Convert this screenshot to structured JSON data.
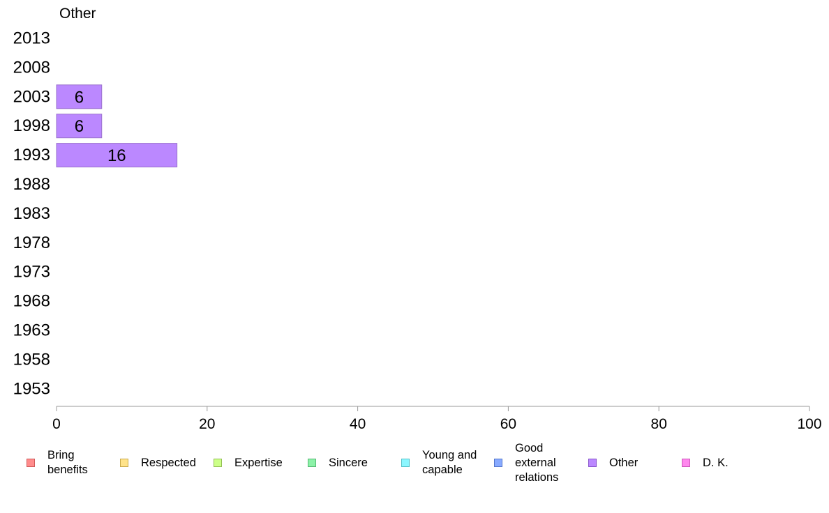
{
  "chart_data": {
    "type": "bar",
    "orientation": "horizontal",
    "title": "Other",
    "categories": [
      "2013",
      "2008",
      "2003",
      "1998",
      "1993",
      "1988",
      "1983",
      "1978",
      "1973",
      "1968",
      "1963",
      "1958",
      "1953"
    ],
    "series": [
      {
        "name": "Other",
        "color": "#bb88ff",
        "values": [
          null,
          null,
          6,
          6,
          16,
          null,
          null,
          null,
          null,
          null,
          null,
          null,
          null
        ]
      }
    ],
    "xlim": [
      0,
      100
    ],
    "xticks": [
      0,
      20,
      40,
      60,
      80,
      100
    ],
    "grid": false,
    "legend_position": "bottom",
    "legend": [
      {
        "label": "Bring benefits",
        "color": "#ff8c8c",
        "border": "#d05a5a"
      },
      {
        "label": "Respected",
        "color": "#ffe38a",
        "border": "#c9a94a"
      },
      {
        "label": "Expertise",
        "color": "#ccff88",
        "border": "#93bf55"
      },
      {
        "label": "Sincere",
        "color": "#8cf2a8",
        "border": "#55b873"
      },
      {
        "label": "Young and capable",
        "color": "#8cf7ff",
        "border": "#55c0c8"
      },
      {
        "label": "Good external relations",
        "color": "#88aaff",
        "border": "#5577cc"
      },
      {
        "label": "Other",
        "color": "#bb88ff",
        "border": "#8855cc"
      },
      {
        "label": "D. K.",
        "color": "#ff88ee",
        "border": "#cc55bb"
      }
    ]
  }
}
